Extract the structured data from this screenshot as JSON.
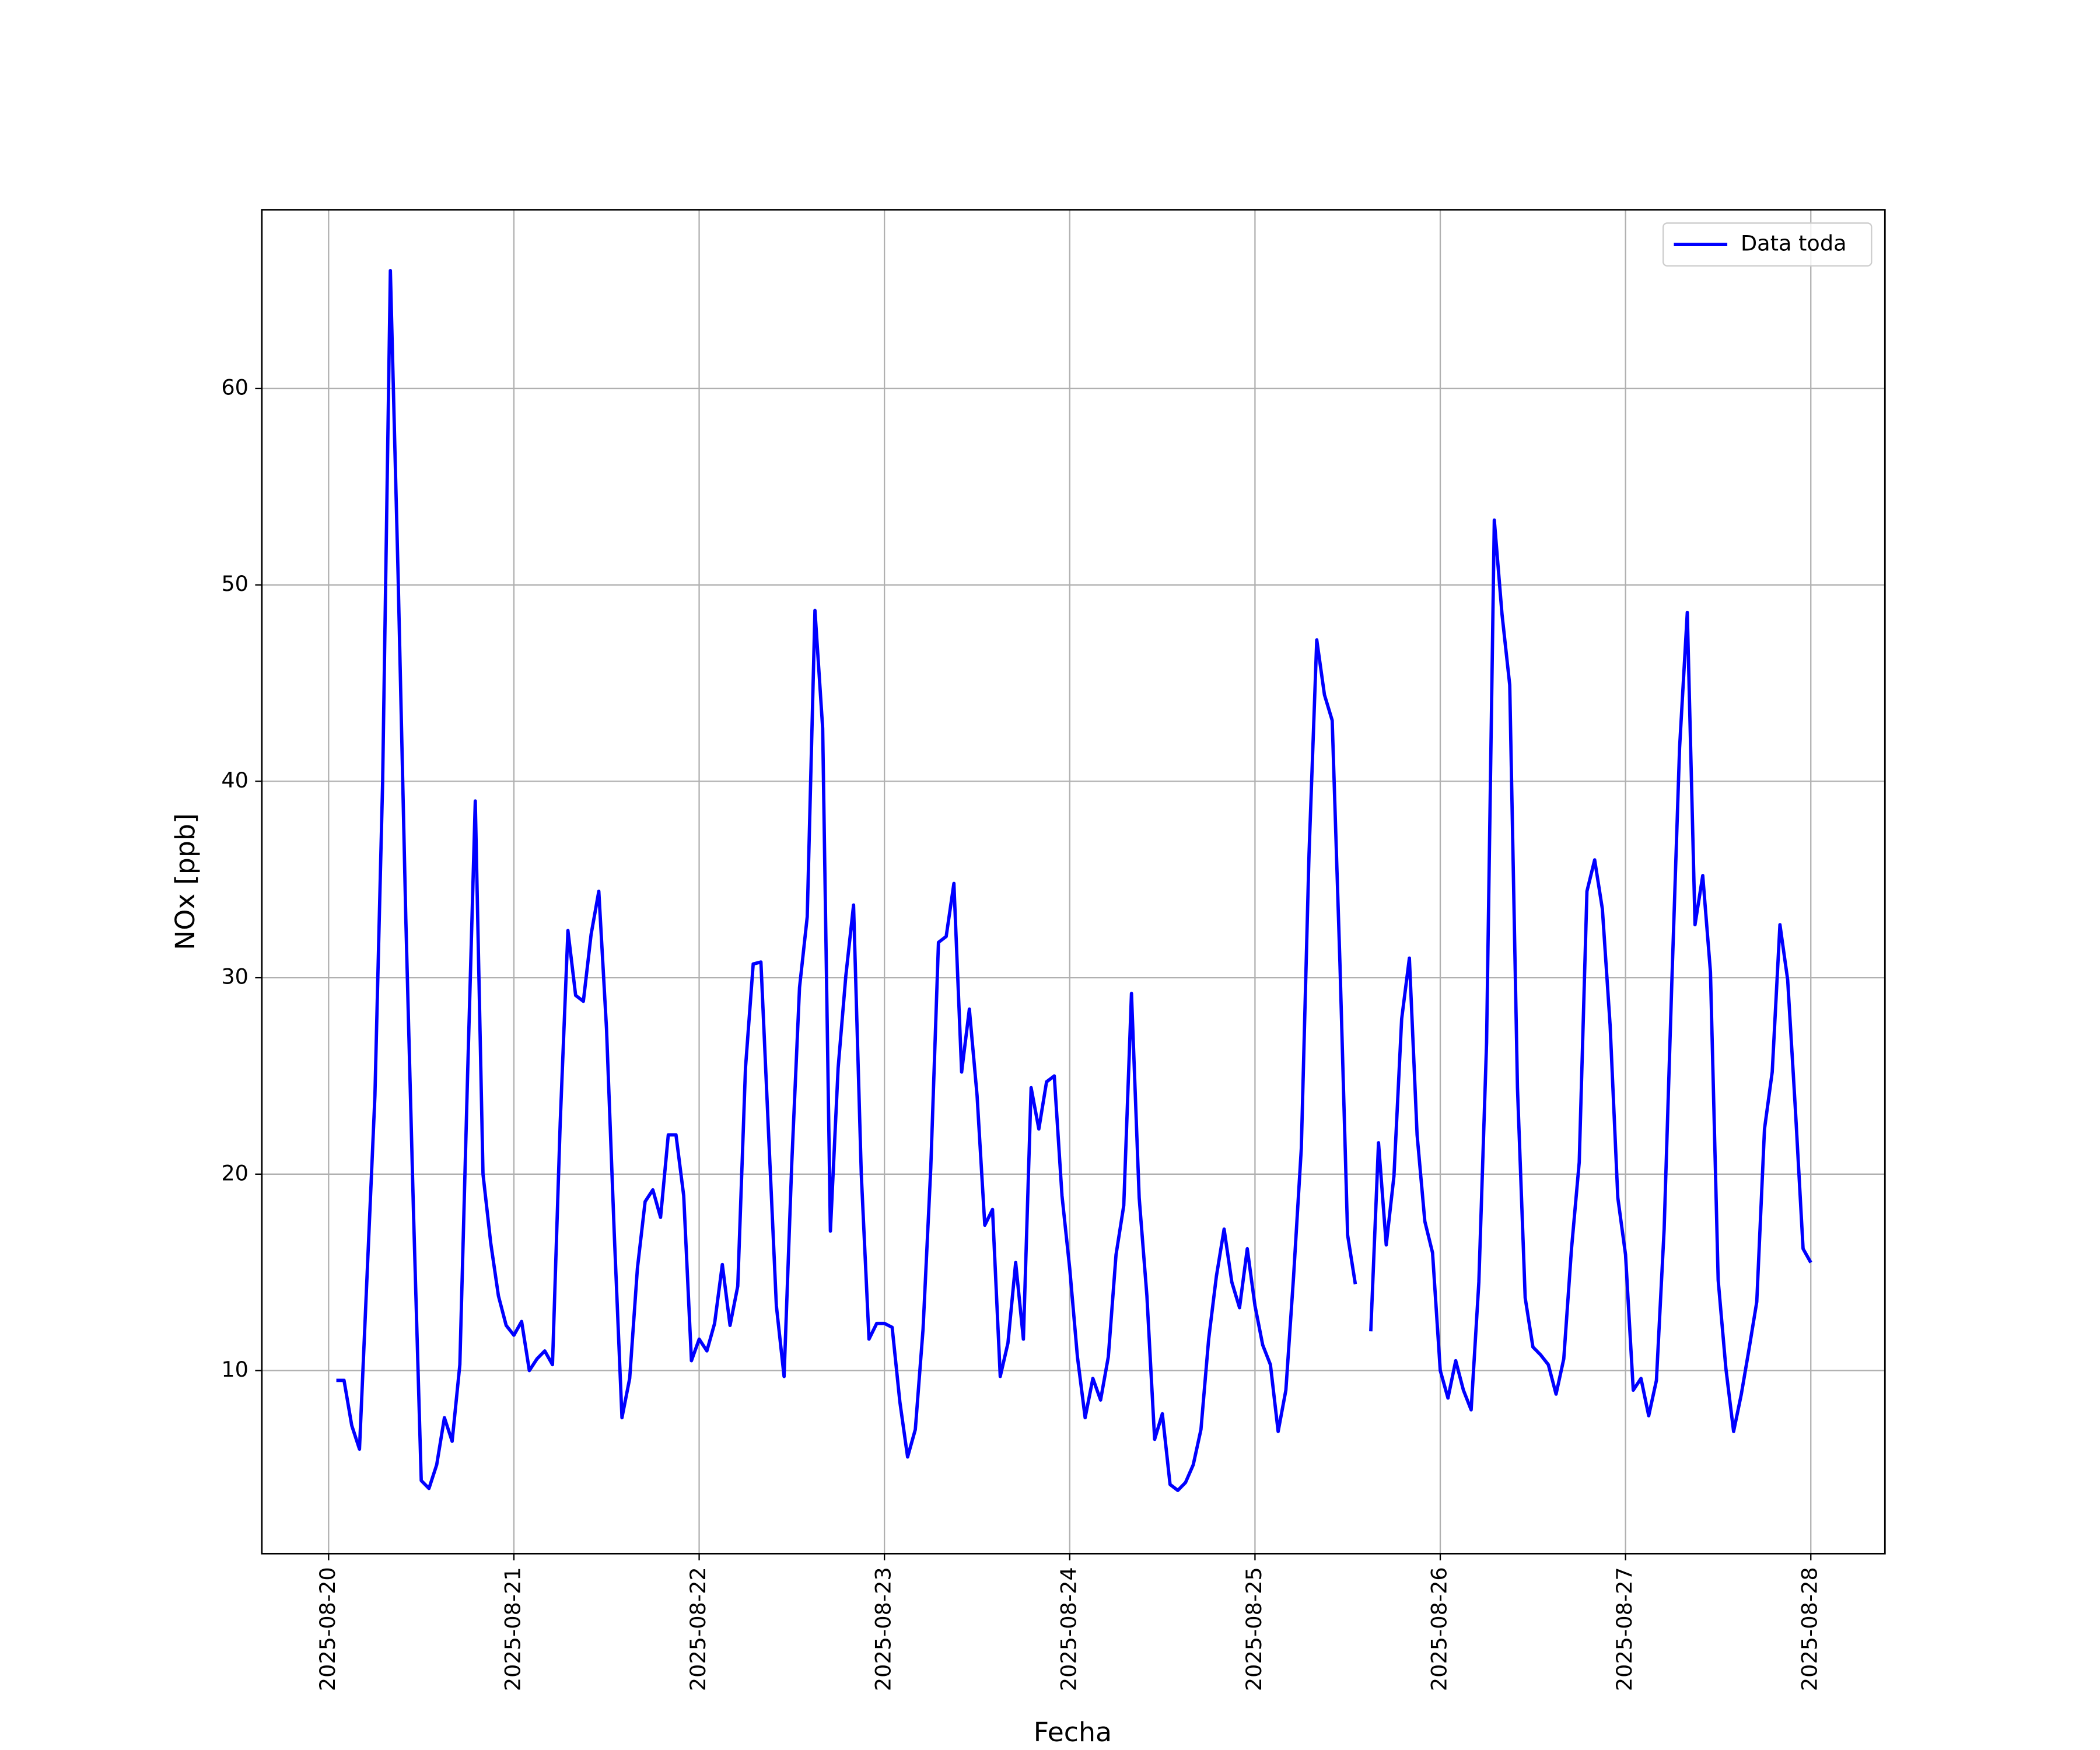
{
  "chart_data": {
    "type": "line",
    "xlabel": "Fecha",
    "ylabel": "NOx [ppb]",
    "x": [
      "2025-08-20T01:00",
      "2025-08-20T02:00",
      "2025-08-20T03:00",
      "2025-08-20T04:00",
      "2025-08-20T05:00",
      "2025-08-20T06:00",
      "2025-08-20T07:00",
      "2025-08-20T08:00",
      "2025-08-20T09:00",
      "2025-08-20T10:00",
      "2025-08-20T11:00",
      "2025-08-20T12:00",
      "2025-08-20T13:00",
      "2025-08-20T14:00",
      "2025-08-20T15:00",
      "2025-08-20T16:00",
      "2025-08-20T17:00",
      "2025-08-20T18:00",
      "2025-08-20T19:00",
      "2025-08-20T20:00",
      "2025-08-20T21:00",
      "2025-08-20T22:00",
      "2025-08-20T23:00",
      "2025-08-21T00:00",
      "2025-08-21T01:00",
      "2025-08-21T02:00",
      "2025-08-21T03:00",
      "2025-08-21T04:00",
      "2025-08-21T05:00",
      "2025-08-21T06:00",
      "2025-08-21T07:00",
      "2025-08-21T08:00",
      "2025-08-21T09:00",
      "2025-08-21T10:00",
      "2025-08-21T11:00",
      "2025-08-21T12:00",
      "2025-08-21T13:00",
      "2025-08-21T14:00",
      "2025-08-21T15:00",
      "2025-08-21T16:00",
      "2025-08-21T17:00",
      "2025-08-21T18:00",
      "2025-08-21T19:00",
      "2025-08-21T20:00",
      "2025-08-21T21:00",
      "2025-08-21T22:00",
      "2025-08-21T23:00",
      "2025-08-22T00:00",
      "2025-08-22T01:00",
      "2025-08-22T02:00",
      "2025-08-22T03:00",
      "2025-08-22T04:00",
      "2025-08-22T05:00",
      "2025-08-22T06:00",
      "2025-08-22T07:00",
      "2025-08-22T08:00",
      "2025-08-22T09:00",
      "2025-08-22T10:00",
      "2025-08-22T11:00",
      "2025-08-22T12:00",
      "2025-08-22T13:00",
      "2025-08-22T14:00",
      "2025-08-22T15:00",
      "2025-08-22T16:00",
      "2025-08-22T17:00",
      "2025-08-22T18:00",
      "2025-08-22T19:00",
      "2025-08-22T20:00",
      "2025-08-22T21:00",
      "2025-08-22T22:00",
      "2025-08-22T23:00",
      "2025-08-23T00:00",
      "2025-08-23T01:00",
      "2025-08-23T02:00",
      "2025-08-23T03:00",
      "2025-08-23T04:00",
      "2025-08-23T05:00",
      "2025-08-23T06:00",
      "2025-08-23T07:00",
      "2025-08-23T08:00",
      "2025-08-23T09:00",
      "2025-08-23T10:00",
      "2025-08-23T11:00",
      "2025-08-23T12:00",
      "2025-08-23T13:00",
      "2025-08-23T14:00",
      "2025-08-23T15:00",
      "2025-08-23T16:00",
      "2025-08-23T17:00",
      "2025-08-23T18:00",
      "2025-08-23T19:00",
      "2025-08-23T20:00",
      "2025-08-23T21:00",
      "2025-08-23T22:00",
      "2025-08-23T23:00",
      "2025-08-24T00:00",
      "2025-08-24T01:00",
      "2025-08-24T02:00",
      "2025-08-24T03:00",
      "2025-08-24T04:00",
      "2025-08-24T05:00",
      "2025-08-24T06:00",
      "2025-08-24T07:00",
      "2025-08-24T08:00",
      "2025-08-24T09:00",
      "2025-08-24T10:00",
      "2025-08-24T11:00",
      "2025-08-24T12:00",
      "2025-08-24T13:00",
      "2025-08-24T14:00",
      "2025-08-24T15:00",
      "2025-08-24T16:00",
      "2025-08-24T17:00",
      "2025-08-24T18:00",
      "2025-08-24T19:00",
      "2025-08-24T20:00",
      "2025-08-24T21:00",
      "2025-08-24T22:00",
      "2025-08-24T23:00",
      "2025-08-25T00:00",
      "2025-08-25T01:00",
      "2025-08-25T02:00",
      "2025-08-25T03:00",
      "2025-08-25T04:00",
      "2025-08-25T05:00",
      "2025-08-25T06:00",
      "2025-08-25T07:00",
      "2025-08-25T08:00",
      "2025-08-25T09:00",
      "2025-08-25T10:00",
      "2025-08-25T11:00",
      "2025-08-25T12:00",
      "2025-08-25T13:00",
      "2025-08-25T14:00",
      "2025-08-25T15:00",
      "2025-08-25T16:00",
      "2025-08-25T17:00",
      "2025-08-25T18:00",
      "2025-08-25T19:00",
      "2025-08-25T20:00",
      "2025-08-25T21:00",
      "2025-08-25T22:00",
      "2025-08-25T23:00",
      "2025-08-26T00:00",
      "2025-08-26T01:00",
      "2025-08-26T02:00",
      "2025-08-26T03:00",
      "2025-08-26T04:00",
      "2025-08-26T05:00",
      "2025-08-26T06:00",
      "2025-08-26T07:00",
      "2025-08-26T08:00",
      "2025-08-26T09:00",
      "2025-08-26T10:00",
      "2025-08-26T11:00",
      "2025-08-26T12:00",
      "2025-08-26T13:00",
      "2025-08-26T14:00",
      "2025-08-26T15:00",
      "2025-08-26T16:00",
      "2025-08-26T17:00",
      "2025-08-26T18:00",
      "2025-08-26T19:00",
      "2025-08-26T20:00",
      "2025-08-26T21:00",
      "2025-08-26T22:00",
      "2025-08-26T23:00",
      "2025-08-27T00:00",
      "2025-08-27T01:00",
      "2025-08-27T02:00",
      "2025-08-27T03:00",
      "2025-08-27T04:00",
      "2025-08-27T05:00",
      "2025-08-27T06:00",
      "2025-08-27T07:00",
      "2025-08-27T08:00",
      "2025-08-27T09:00",
      "2025-08-27T10:00",
      "2025-08-27T11:00",
      "2025-08-27T12:00",
      "2025-08-27T13:00",
      "2025-08-27T14:00",
      "2025-08-27T15:00",
      "2025-08-27T16:00",
      "2025-08-27T17:00",
      "2025-08-27T18:00",
      "2025-08-27T19:00",
      "2025-08-27T20:00",
      "2025-08-27T21:00",
      "2025-08-27T22:00",
      "2025-08-27T23:00",
      "2025-08-28T00:00"
    ],
    "series": [
      {
        "name": "Data toda",
        "color": "#0000ff",
        "values": [
          9.5,
          9.5,
          7.2,
          6.0,
          15,
          24,
          40,
          66,
          50.5,
          33,
          18,
          4.4,
          4.0,
          5.2,
          7.6,
          6.4,
          10.3,
          25,
          39.0,
          20,
          16.5,
          13.8,
          12.3,
          11.8,
          12.5,
          10,
          10.6,
          11,
          10.3,
          22.6,
          32.4,
          29.1,
          28.8,
          32.2,
          34.4,
          27.4,
          17,
          7.6,
          9.6,
          15.2,
          18.6,
          19.2,
          17.8,
          22,
          22.0,
          18.9,
          10.5,
          11.6,
          11,
          12.4,
          15.4,
          12.3,
          14.3,
          25.4,
          30.7,
          30.8,
          22,
          13.3,
          9.7,
          20.6,
          29.5,
          33.1,
          48.7,
          42.7,
          17.1,
          25.4,
          30.1,
          33.7,
          20,
          11.6,
          12.4,
          12.4,
          12.2,
          8.4,
          5.6,
          7,
          12.1,
          20.3,
          31.8,
          32.1,
          34.8,
          25.2,
          28.4,
          24,
          17.4,
          18.2,
          9.7,
          11.4,
          15.5,
          11.6,
          24.4,
          22.3,
          24.7,
          25,
          18.9,
          15.2,
          10.7,
          7.6,
          9.6,
          8.5,
          10.7,
          15.9,
          18.4,
          29.2,
          18.8,
          13.8,
          6.5,
          7.8,
          4.2,
          3.9,
          4.3,
          5.2,
          7,
          11.6,
          14.8,
          17.2,
          14.5,
          13.2,
          16.2,
          13.3,
          11.3,
          10.3,
          6.9,
          9,
          14.8,
          21.3,
          36.3,
          47.2,
          44.4,
          43.1,
          30.8,
          16.9,
          14.4,
          null,
          12.0,
          21.6,
          16.4,
          19.9,
          27.9,
          31,
          22,
          17.6,
          16,
          10,
          8.6,
          10.5,
          9,
          8,
          14.5,
          26.7,
          53.3,
          48.5,
          44.9,
          24.4,
          13.7,
          11.2,
          10.8,
          10.3,
          8.8,
          10.6,
          16.2,
          20.6,
          34.4,
          36,
          33.5,
          27.6,
          18.8,
          15.9,
          9,
          9.6,
          7.7,
          9.5,
          17.2,
          29.8,
          41.7,
          48.6,
          32.7,
          35.2,
          30.3,
          14.6,
          10.1,
          6.9,
          8.8,
          11.1,
          13.5,
          22.3,
          25.2,
          32.7,
          29.9,
          23.3,
          16.2,
          15.5
        ]
      }
    ],
    "xlim": [
      "2025-08-19T15:21",
      "2025-08-28T09:36"
    ],
    "xticks": [
      "2025-08-20",
      "2025-08-21",
      "2025-08-22",
      "2025-08-23",
      "2025-08-24",
      "2025-08-25",
      "2025-08-26",
      "2025-08-27",
      "2025-08-28"
    ],
    "ylim": [
      0.68,
      69.1
    ],
    "yticks": [
      10,
      20,
      30,
      40,
      50,
      60
    ],
    "grid": true,
    "legend": "upper right"
  }
}
